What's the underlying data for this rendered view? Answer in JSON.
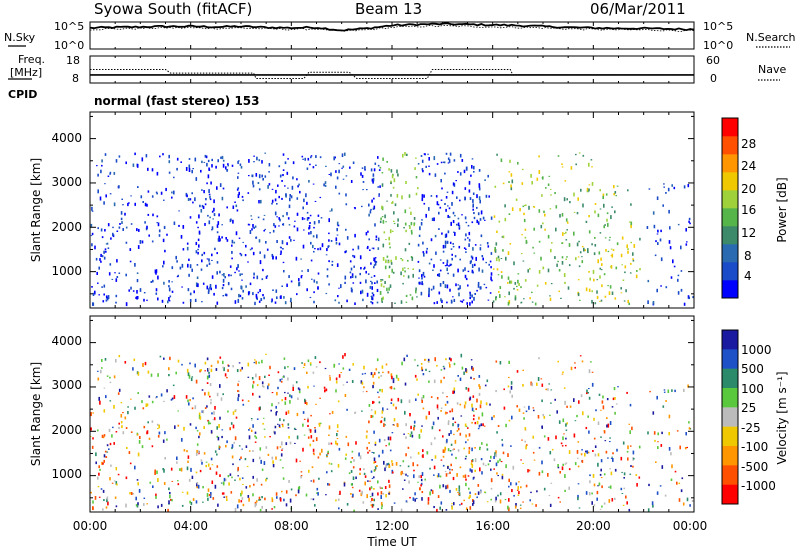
{
  "header": {
    "station": "Syowa South (fitACF)",
    "beam": "Beam 13",
    "date": "06/Mar/2011"
  },
  "labels": {
    "nsky": "N.Sky",
    "nsearch": "N.Search",
    "freq_line1": "Freq.",
    "freq_line2": "[MHz]",
    "nave": "Nave",
    "cpid": "CPID",
    "cpid_value": "normal (fast stereo) 153",
    "power_label": "Power [dB]",
    "velocity_label": "Velocity [m s⁻¹]",
    "slant_range": "Slant Range [km]",
    "time_axis": "Time UT"
  },
  "colors": {
    "power": [
      "#0000ff",
      "#1a4bc8",
      "#2a6ab0",
      "#3d8a6a",
      "#55b44a",
      "#9fd23a",
      "#f0c800",
      "#ff9600",
      "#ff5000",
      "#ff0000"
    ],
    "velocity": [
      "#1a1aa0",
      "#1e50c8",
      "#2a8a6a",
      "#5ac83c",
      "#bbbbbb",
      "#f0c800",
      "#ff9600",
      "#ff5000",
      "#ff0000"
    ]
  },
  "chart_data": [
    {
      "type": "line",
      "name": "noise-panel",
      "series": [
        {
          "name": "N.Sky",
          "x": [
            0,
            1,
            2,
            3,
            4,
            5,
            6,
            7,
            8,
            9,
            10,
            11,
            12,
            13,
            14,
            15,
            16,
            17,
            18,
            19,
            20,
            21,
            22,
            23,
            24
          ],
          "values": [
            4.3,
            4.4,
            4.5,
            4.6,
            4.6,
            4.5,
            4.6,
            4.4,
            4.3,
            4.4,
            3.8,
            4.2,
            4.8,
            5.0,
            5.1,
            5.0,
            4.9,
            4.8,
            4.6,
            4.4,
            4.3,
            4.2,
            4.2,
            4.1,
            4.0
          ]
        },
        {
          "name": "N.Search",
          "x": [
            0,
            1,
            2,
            3,
            4,
            5,
            6,
            7,
            8,
            9,
            10,
            11,
            12,
            13,
            14,
            15,
            16,
            17,
            18,
            19,
            20,
            21,
            22,
            23,
            24
          ],
          "values": [
            4.0,
            4.1,
            4.2,
            4.3,
            4.3,
            4.2,
            4.3,
            4.1,
            4.0,
            4.1,
            3.6,
            3.9,
            4.4,
            4.6,
            4.7,
            4.6,
            4.5,
            4.4,
            4.3,
            4.1,
            4.0,
            3.9,
            3.9,
            3.8,
            3.7
          ]
        }
      ],
      "y_ticks": [
        "10^5",
        "10^0"
      ],
      "y2_ticks": [
        "10^5",
        "10^0"
      ]
    },
    {
      "type": "line",
      "name": "freq-nave-panel",
      "series": [
        {
          "name": "Freq",
          "x": [
            0,
            24
          ],
          "values": [
            11,
            11
          ]
        },
        {
          "name": "Nave",
          "x": [
            0,
            3,
            3.2,
            6.5,
            6.6,
            8.5,
            8.7,
            10.3,
            10.6,
            13.4,
            13.6,
            16.7,
            16.8,
            24
          ],
          "values": [
            30,
            30,
            22,
            22,
            10,
            10,
            24,
            24,
            10,
            10,
            30,
            30,
            18,
            18
          ]
        }
      ],
      "y_ticks": [
        "18",
        "8"
      ],
      "y2_ticks": [
        "60",
        "0"
      ]
    },
    {
      "type": "heatmap",
      "name": "power-panel",
      "x_ticks": [
        "00:00",
        "04:00",
        "08:00",
        "12:00",
        "16:00",
        "20:00",
        "00:00"
      ],
      "y_ticks": [
        "1000",
        "2000",
        "3000",
        "4000"
      ],
      "ylim": [
        180,
        4600
      ],
      "colorbar_ticks": [
        "4",
        "8",
        "12",
        "16",
        "20",
        "24",
        "28"
      ]
    },
    {
      "type": "heatmap",
      "name": "velocity-panel",
      "x_ticks": [
        "00:00",
        "04:00",
        "08:00",
        "12:00",
        "16:00",
        "20:00",
        "00:00"
      ],
      "y_ticks": [
        "1000",
        "2000",
        "3000",
        "4000"
      ],
      "ylim": [
        180,
        4600
      ],
      "colorbar_ticks": [
        "1000",
        "500",
        "100",
        "25",
        "-25",
        "-100",
        "-500",
        "-1000"
      ]
    }
  ]
}
